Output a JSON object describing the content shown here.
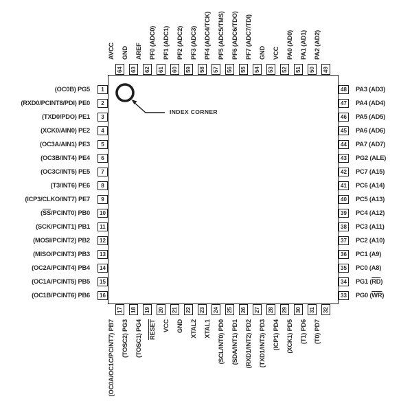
{
  "labels": {
    "index_corner": "INDEX CORNER"
  },
  "colors": {
    "line": "#1f1f1f",
    "text": "#2b2b2b",
    "bg": "#ffffff"
  },
  "pins": {
    "left": [
      {
        "num": 1,
        "label": "(OC0B) PG5"
      },
      {
        "num": 2,
        "label": "(RXD0/PCINT8/PDI) PE0"
      },
      {
        "num": 3,
        "label": "(TXD0/PDO) PE1"
      },
      {
        "num": 4,
        "label": "(XCK0/AIN0) PE2"
      },
      {
        "num": 5,
        "label": "(OC3A/AIN1) PE3"
      },
      {
        "num": 6,
        "label": "(OC3B/INT4) PE4"
      },
      {
        "num": 7,
        "label": "(OC3C/INT5) PE5"
      },
      {
        "num": 8,
        "label": "(T3/INT6) PE6"
      },
      {
        "num": 9,
        "label": "(ICP3/CLKO/INT7) PE7"
      },
      {
        "num": 10,
        "label": "(~SS~/PCINT0) PB0"
      },
      {
        "num": 11,
        "label": "(SCK/PCINT1) PB1"
      },
      {
        "num": 12,
        "label": "(MOSI/PCINT2) PB2"
      },
      {
        "num": 13,
        "label": "(MISO/PCINT3) PB3"
      },
      {
        "num": 14,
        "label": "(OC2A/PCINT4) PB4"
      },
      {
        "num": 15,
        "label": "(OC1A/PCINT5) PB5"
      },
      {
        "num": 16,
        "label": "(OC1B/PCINT6) PB6"
      }
    ],
    "top": [
      {
        "num": 64,
        "label": "AVCC"
      },
      {
        "num": 63,
        "label": "GND"
      },
      {
        "num": 62,
        "label": "AREF"
      },
      {
        "num": 61,
        "label": "PF0 (ADC0)"
      },
      {
        "num": 60,
        "label": "PF1 (ADC1)"
      },
      {
        "num": 59,
        "label": "PF2 (ADC2)"
      },
      {
        "num": 58,
        "label": "PF3 (ADC3)"
      },
      {
        "num": 57,
        "label": "PF4 (ADC4/TCK)"
      },
      {
        "num": 56,
        "label": "PF5 (ADC5/TMS)"
      },
      {
        "num": 55,
        "label": "PF6 (ADC6/TDO)"
      },
      {
        "num": 54,
        "label": "PF7 (ADC7/TDI)"
      },
      {
        "num": 53,
        "label": "GND"
      },
      {
        "num": 52,
        "label": "VCC"
      },
      {
        "num": 51,
        "label": "PA0 (AD0)"
      },
      {
        "num": 50,
        "label": "PA1 (AD1)"
      },
      {
        "num": 49,
        "label": "PA2 (AD2)"
      }
    ],
    "right": [
      {
        "num": 48,
        "label": "PA3 (AD3)"
      },
      {
        "num": 47,
        "label": "PA4 (AD4)"
      },
      {
        "num": 46,
        "label": "PA5 (AD5)"
      },
      {
        "num": 45,
        "label": "PA6 (AD6)"
      },
      {
        "num": 44,
        "label": "PA7 (AD7)"
      },
      {
        "num": 43,
        "label": "PG2 (ALE)"
      },
      {
        "num": 42,
        "label": "PC7 (A15)"
      },
      {
        "num": 41,
        "label": "PC6 (A14)"
      },
      {
        "num": 40,
        "label": "PC5 (A13)"
      },
      {
        "num": 39,
        "label": "PC4 (A12)"
      },
      {
        "num": 38,
        "label": "PC3 (A11)"
      },
      {
        "num": 37,
        "label": "PC2 (A10)"
      },
      {
        "num": 36,
        "label": "PC1 (A9)"
      },
      {
        "num": 35,
        "label": "PC0 (A8)"
      },
      {
        "num": 34,
        "label": "PG1 (~RD~)"
      },
      {
        "num": 33,
        "label": "PG0 (~WR~)"
      }
    ],
    "bottom": [
      {
        "num": 17,
        "label": "(OC0A/OC1C/PCINT7) PB7"
      },
      {
        "num": 18,
        "label": "(TOSC2) PG3"
      },
      {
        "num": 19,
        "label": "(TOSC1) PG4"
      },
      {
        "num": 20,
        "label": "~RESET~"
      },
      {
        "num": 21,
        "label": "VCC"
      },
      {
        "num": 22,
        "label": "GND"
      },
      {
        "num": 23,
        "label": "XTAL2"
      },
      {
        "num": 24,
        "label": "XTAL1"
      },
      {
        "num": 25,
        "label": "(SCL/INT0) PD0"
      },
      {
        "num": 26,
        "label": "(SDA/INT1) PD1"
      },
      {
        "num": 27,
        "label": "(RXD1/INT2) PD2"
      },
      {
        "num": 28,
        "label": "(TXD1/INT3) PD3"
      },
      {
        "num": 29,
        "label": "(ICP1) PD4"
      },
      {
        "num": 30,
        "label": "(XCK1) PD5"
      },
      {
        "num": 31,
        "label": "(T1) PD6"
      },
      {
        "num": 32,
        "label": "(T0) PD7"
      }
    ]
  }
}
